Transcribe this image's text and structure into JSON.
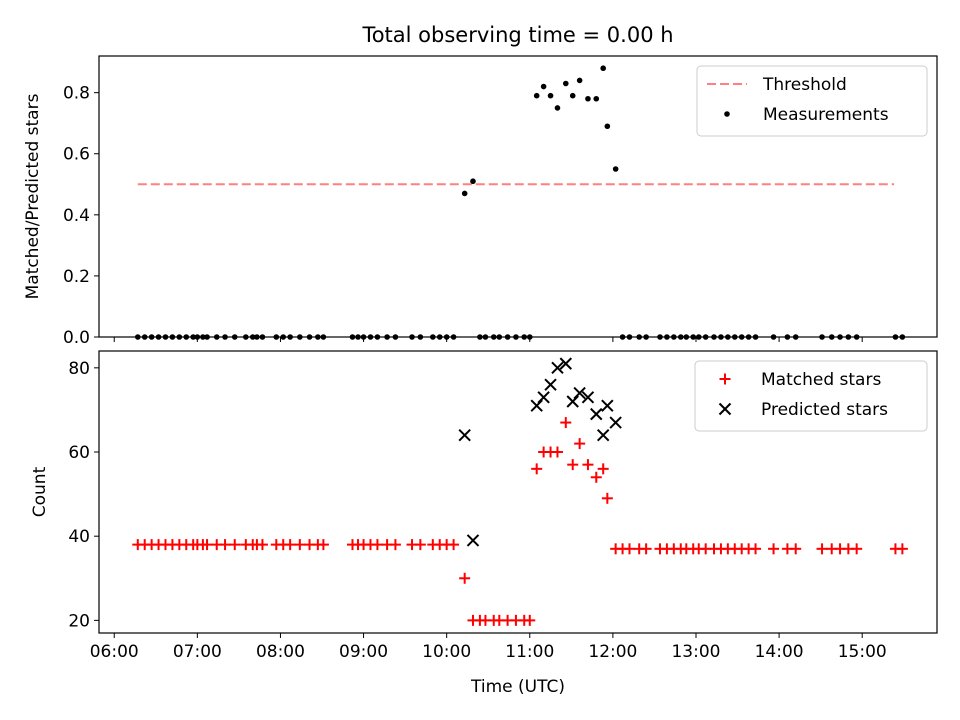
{
  "figure_title": "Total observing time = 0.00 h",
  "chart_data": [
    {
      "type": "scatter",
      "panel": "top",
      "title": "Total observing time = 0.00 h",
      "xlabel": "",
      "ylabel": "Matched/Predicted stars",
      "ylim": [
        0,
        0.92
      ],
      "xlim": [
        "05:49",
        "15:54"
      ],
      "yticks": [
        "0.0",
        "0.2",
        "0.4",
        "0.6",
        "0.8"
      ],
      "legend_position": "top-right",
      "threshold": {
        "name": "Threshold",
        "value": 0.5,
        "x_range": [
          "06:17",
          "15:23"
        ],
        "color": "#ff8080",
        "style": "dashed"
      },
      "series": [
        {
          "name": "Measurements",
          "color": "#000000",
          "marker": "dot",
          "points": [
            [
              "06:17",
              0
            ],
            [
              "06:22",
              0
            ],
            [
              "06:27",
              0
            ],
            [
              "06:32",
              0
            ],
            [
              "06:37",
              0
            ],
            [
              "06:42",
              0
            ],
            [
              "06:47",
              0
            ],
            [
              "06:52",
              0
            ],
            [
              "06:57",
              0
            ],
            [
              "07:00",
              0
            ],
            [
              "07:04",
              0
            ],
            [
              "07:07",
              0
            ],
            [
              "07:14",
              0
            ],
            [
              "07:20",
              0
            ],
            [
              "07:27",
              0
            ],
            [
              "07:35",
              0
            ],
            [
              "07:40",
              0
            ],
            [
              "07:43",
              0
            ],
            [
              "07:47",
              0
            ],
            [
              "07:57",
              0
            ],
            [
              "08:02",
              0
            ],
            [
              "08:07",
              0
            ],
            [
              "08:14",
              0
            ],
            [
              "08:21",
              0
            ],
            [
              "08:27",
              0
            ],
            [
              "08:31",
              0
            ],
            [
              "08:52",
              0
            ],
            [
              "08:56",
              0
            ],
            [
              "09:00",
              0
            ],
            [
              "09:05",
              0
            ],
            [
              "09:10",
              0
            ],
            [
              "09:17",
              0
            ],
            [
              "09:23",
              0
            ],
            [
              "09:35",
              0
            ],
            [
              "09:41",
              0
            ],
            [
              "09:50",
              0
            ],
            [
              "09:55",
              0
            ],
            [
              "10:00",
              0
            ],
            [
              "10:05",
              0
            ],
            [
              "10:13",
              0.47
            ],
            [
              "10:19",
              0.51
            ],
            [
              "10:24",
              0
            ],
            [
              "10:28",
              0
            ],
            [
              "10:34",
              0
            ],
            [
              "10:38",
              0
            ],
            [
              "10:44",
              0
            ],
            [
              "10:50",
              0
            ],
            [
              "10:56",
              0
            ],
            [
              "11:00",
              0
            ],
            [
              "11:05",
              0.79
            ],
            [
              "11:10",
              0.82
            ],
            [
              "11:15",
              0.79
            ],
            [
              "11:20",
              0.75
            ],
            [
              "11:26",
              0.83
            ],
            [
              "11:31",
              0.79
            ],
            [
              "11:36",
              0.84
            ],
            [
              "11:42",
              0.78
            ],
            [
              "11:48",
              0.78
            ],
            [
              "11:53",
              0.88
            ],
            [
              "11:56",
              0.69
            ],
            [
              "12:02",
              0.55
            ],
            [
              "12:07",
              0
            ],
            [
              "12:12",
              0
            ],
            [
              "12:19",
              0
            ],
            [
              "12:24",
              0
            ],
            [
              "12:34",
              0
            ],
            [
              "12:39",
              0
            ],
            [
              "12:44",
              0
            ],
            [
              "12:49",
              0
            ],
            [
              "12:53",
              0
            ],
            [
              "12:58",
              0
            ],
            [
              "13:02",
              0
            ],
            [
              "13:07",
              0
            ],
            [
              "13:13",
              0
            ],
            [
              "13:18",
              0
            ],
            [
              "13:23",
              0
            ],
            [
              "13:28",
              0
            ],
            [
              "13:33",
              0
            ],
            [
              "13:38",
              0
            ],
            [
              "13:43",
              0
            ],
            [
              "13:56",
              0
            ],
            [
              "14:06",
              0
            ],
            [
              "14:12",
              0
            ],
            [
              "14:31",
              0
            ],
            [
              "14:38",
              0
            ],
            [
              "14:44",
              0
            ],
            [
              "14:50",
              0
            ],
            [
              "14:56",
              0
            ],
            [
              "15:24",
              0
            ],
            [
              "15:29",
              0
            ]
          ]
        }
      ]
    },
    {
      "type": "scatter",
      "panel": "bottom",
      "xlabel": "Time (UTC)",
      "ylabel": "Count",
      "ylim": [
        17,
        84
      ],
      "xlim": [
        "05:49",
        "15:54"
      ],
      "xticks": [
        "06:00",
        "07:00",
        "08:00",
        "09:00",
        "10:00",
        "11:00",
        "12:00",
        "13:00",
        "14:00",
        "15:00"
      ],
      "yticks": [
        "20",
        "40",
        "60",
        "80"
      ],
      "legend_position": "top-right",
      "series": [
        {
          "name": "Matched stars",
          "color": "#ff0000",
          "marker": "plus",
          "points": [
            [
              "06:17",
              38
            ],
            [
              "06:22",
              38
            ],
            [
              "06:27",
              38
            ],
            [
              "06:32",
              38
            ],
            [
              "06:37",
              38
            ],
            [
              "06:42",
              38
            ],
            [
              "06:47",
              38
            ],
            [
              "06:52",
              38
            ],
            [
              "06:57",
              38
            ],
            [
              "07:00",
              38
            ],
            [
              "07:04",
              38
            ],
            [
              "07:07",
              38
            ],
            [
              "07:14",
              38
            ],
            [
              "07:20",
              38
            ],
            [
              "07:27",
              38
            ],
            [
              "07:35",
              38
            ],
            [
              "07:40",
              38
            ],
            [
              "07:43",
              38
            ],
            [
              "07:47",
              38
            ],
            [
              "07:57",
              38
            ],
            [
              "08:02",
              38
            ],
            [
              "08:07",
              38
            ],
            [
              "08:14",
              38
            ],
            [
              "08:21",
              38
            ],
            [
              "08:27",
              38
            ],
            [
              "08:31",
              38
            ],
            [
              "08:52",
              38
            ],
            [
              "08:56",
              38
            ],
            [
              "09:00",
              38
            ],
            [
              "09:05",
              38
            ],
            [
              "09:10",
              38
            ],
            [
              "09:17",
              38
            ],
            [
              "09:23",
              38
            ],
            [
              "09:35",
              38
            ],
            [
              "09:41",
              38
            ],
            [
              "09:50",
              38
            ],
            [
              "09:55",
              38
            ],
            [
              "10:00",
              38
            ],
            [
              "10:05",
              38
            ],
            [
              "10:13",
              30
            ],
            [
              "10:19",
              20
            ],
            [
              "10:24",
              20
            ],
            [
              "10:28",
              20
            ],
            [
              "10:34",
              20
            ],
            [
              "10:38",
              20
            ],
            [
              "10:44",
              20
            ],
            [
              "10:50",
              20
            ],
            [
              "10:56",
              20
            ],
            [
              "11:00",
              20
            ],
            [
              "11:05",
              56
            ],
            [
              "11:10",
              60
            ],
            [
              "11:15",
              60
            ],
            [
              "11:20",
              60
            ],
            [
              "11:26",
              67
            ],
            [
              "11:31",
              57
            ],
            [
              "11:36",
              62
            ],
            [
              "11:42",
              57
            ],
            [
              "11:48",
              54
            ],
            [
              "11:53",
              56
            ],
            [
              "11:56",
              49
            ],
            [
              "12:02",
              37
            ],
            [
              "12:07",
              37
            ],
            [
              "12:12",
              37
            ],
            [
              "12:19",
              37
            ],
            [
              "12:24",
              37
            ],
            [
              "12:34",
              37
            ],
            [
              "12:39",
              37
            ],
            [
              "12:44",
              37
            ],
            [
              "12:49",
              37
            ],
            [
              "12:53",
              37
            ],
            [
              "12:58",
              37
            ],
            [
              "13:02",
              37
            ],
            [
              "13:07",
              37
            ],
            [
              "13:13",
              37
            ],
            [
              "13:18",
              37
            ],
            [
              "13:23",
              37
            ],
            [
              "13:28",
              37
            ],
            [
              "13:33",
              37
            ],
            [
              "13:38",
              37
            ],
            [
              "13:43",
              37
            ],
            [
              "13:56",
              37
            ],
            [
              "14:06",
              37
            ],
            [
              "14:12",
              37
            ],
            [
              "14:31",
              37
            ],
            [
              "14:38",
              37
            ],
            [
              "14:44",
              37
            ],
            [
              "14:50",
              37
            ],
            [
              "14:56",
              37
            ],
            [
              "15:24",
              37
            ],
            [
              "15:29",
              37
            ]
          ]
        },
        {
          "name": "Predicted stars",
          "color": "#000000",
          "marker": "x",
          "points": [
            [
              "10:13",
              64
            ],
            [
              "10:19",
              39
            ],
            [
              "11:05",
              71
            ],
            [
              "11:10",
              73
            ],
            [
              "11:15",
              76
            ],
            [
              "11:20",
              80
            ],
            [
              "11:26",
              81
            ],
            [
              "11:31",
              72
            ],
            [
              "11:36",
              74
            ],
            [
              "11:42",
              73
            ],
            [
              "11:48",
              69
            ],
            [
              "11:53",
              64
            ],
            [
              "11:56",
              71
            ],
            [
              "12:02",
              67
            ]
          ]
        }
      ]
    }
  ]
}
